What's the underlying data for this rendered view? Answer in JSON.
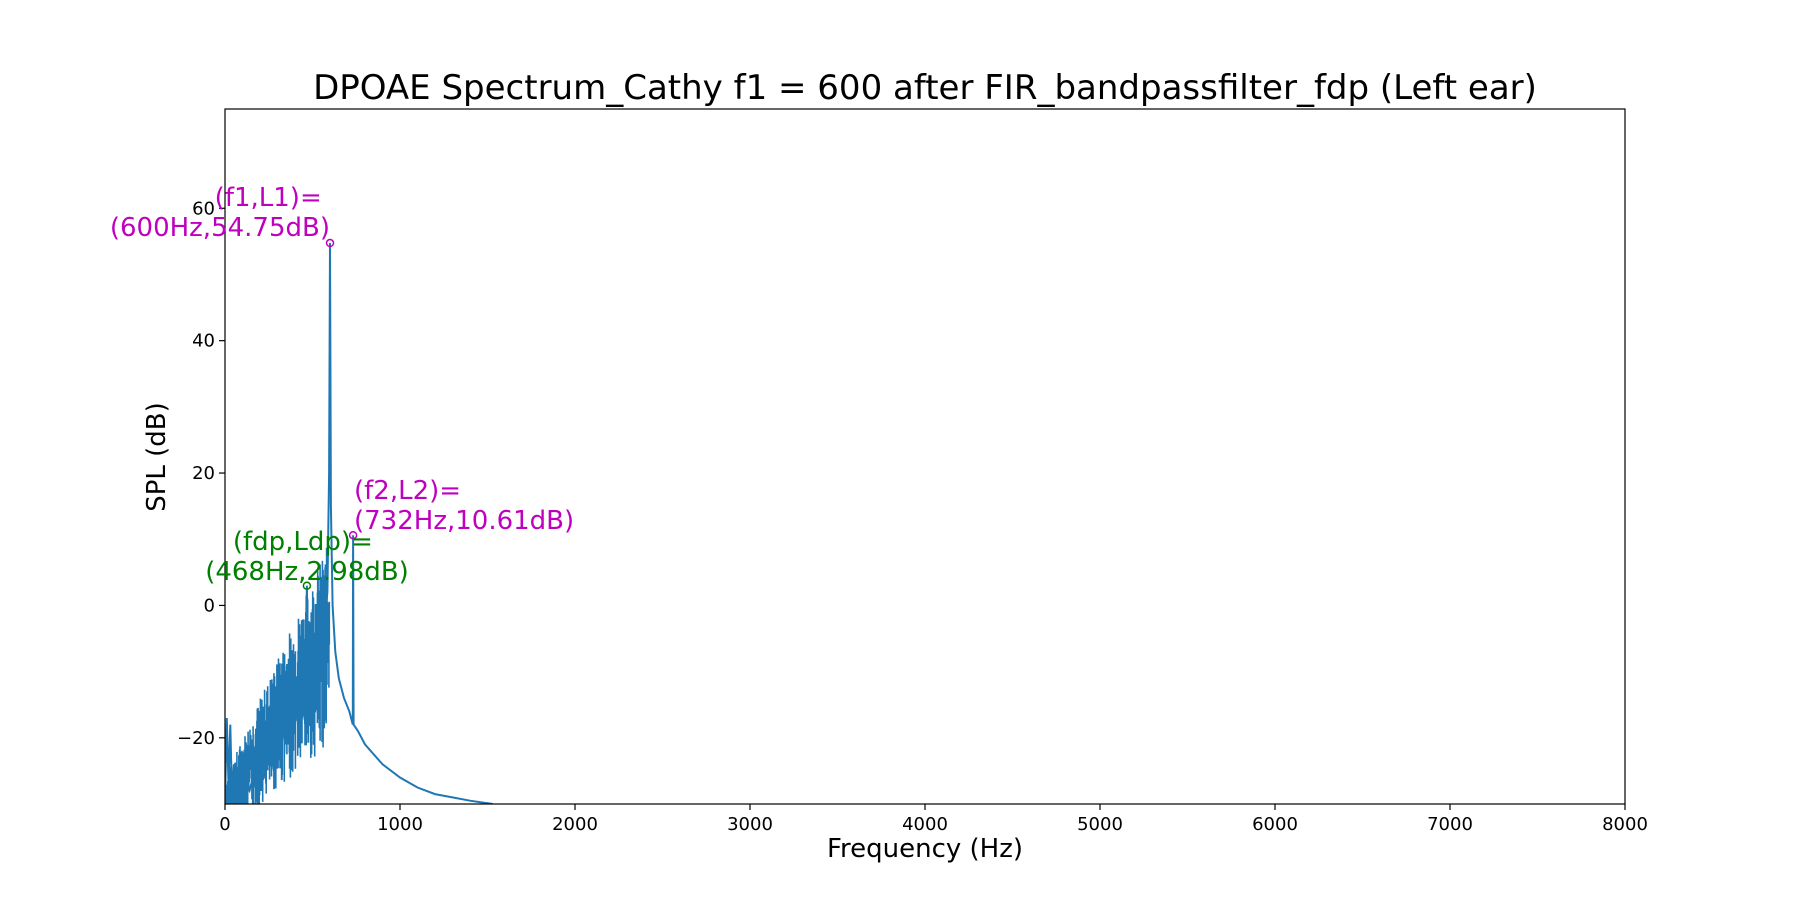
{
  "chart_data": {
    "type": "line",
    "title": "DPOAE Spectrum_Cathy f1 = 600 after FIR_bandpassfilter_fdp (Left ear)",
    "xlabel": "Frequency (Hz)",
    "ylabel": "SPL (dB)",
    "xlim": [
      0,
      8000
    ],
    "ylim": [
      -30,
      75
    ],
    "x_ticks": [
      0,
      1000,
      2000,
      3000,
      4000,
      5000,
      6000,
      7000,
      8000
    ],
    "x_tick_labels": [
      "0",
      "1000",
      "2000",
      "3000",
      "4000",
      "5000",
      "6000",
      "7000",
      "8000"
    ],
    "y_ticks": [
      -20,
      0,
      20,
      40,
      60
    ],
    "y_tick_labels": [
      "−20",
      "0",
      "20",
      "40",
      "60"
    ],
    "grid": false,
    "line_color": "#1f77b4",
    "series": [
      {
        "x": [
          0,
          10,
          20,
          30,
          40,
          50,
          60,
          80,
          100,
          120,
          140,
          160,
          180,
          200,
          220,
          240,
          260,
          280,
          300,
          320,
          340,
          360,
          380,
          400,
          420,
          440,
          460,
          468,
          475,
          490,
          510,
          530,
          550,
          570,
          585,
          595,
          600,
          605,
          615,
          630,
          650,
          680,
          710,
          730,
          732,
          735,
          760,
          800,
          900,
          1000,
          1100,
          1200,
          1300,
          1400,
          1500,
          1530
        ],
        "y": [
          -30,
          -17,
          -27,
          -18,
          -29,
          -24,
          -30,
          -28,
          -29,
          -27,
          -28,
          -26,
          -27,
          -25,
          -26,
          -24,
          -22,
          -25,
          -20,
          -22,
          -17,
          -21,
          -14,
          -18,
          -11,
          -15,
          -8,
          2.98,
          -12,
          -7,
          -9,
          -4,
          -6,
          -2,
          2,
          20,
          54.75,
          15,
          0,
          -7,
          -11,
          -14,
          -16,
          -18,
          10.61,
          -18,
          -19,
          -21,
          -24,
          -26,
          -27.5,
          -28.5,
          -29,
          -29.5,
          -29.9,
          -30
        ]
      }
    ],
    "markers": [
      {
        "x": 600,
        "y": 54.75,
        "color": "#bf00bf"
      },
      {
        "x": 468,
        "y": 2.98,
        "color": "#008000"
      },
      {
        "x": 732,
        "y": 10.61,
        "color": "#bf00bf"
      }
    ],
    "annotations": [
      {
        "lines": [
          "(f1,L1)=",
          "(600Hz,54.75dB)"
        ],
        "color": "#bf00bf"
      },
      {
        "lines": [
          "(f2,L2)=",
          "(732Hz,10.61dB)"
        ],
        "color": "#bf00bf"
      },
      {
        "lines": [
          "(fdp,Ldp)=",
          "(468Hz,2.98dB)"
        ],
        "color": "#008000"
      }
    ]
  }
}
